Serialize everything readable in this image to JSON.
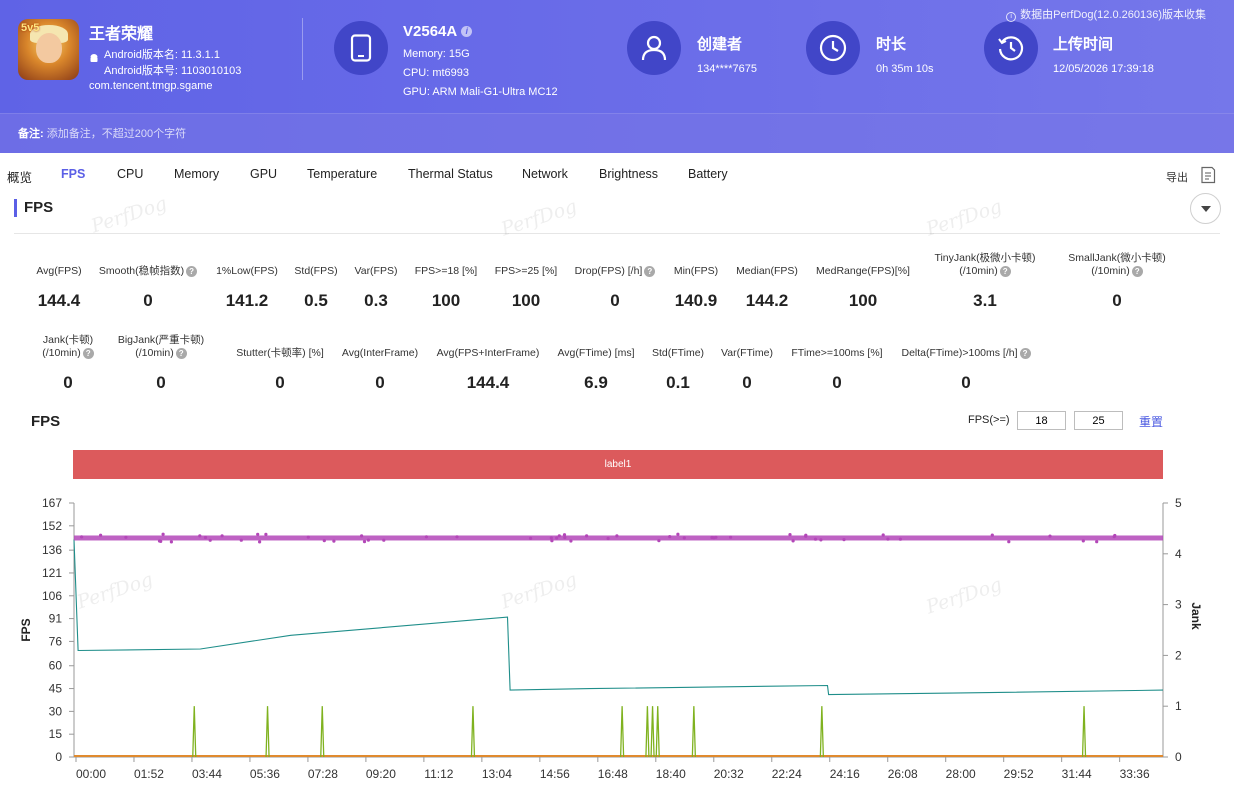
{
  "app": {
    "name": "王者荣耀",
    "version_name": "Android版本名: 11.3.1.1",
    "version_code": "Android版本号: 1103010103",
    "package": "com.tencent.tmgp.sgame"
  },
  "device": {
    "name": "V2564A",
    "memory": "Memory: 15G",
    "cpu": "CPU: mt6993",
    "gpu": "GPU: ARM Mali-G1-Ultra MC12"
  },
  "creator": {
    "title": "创建者",
    "value": "134****7675"
  },
  "duration": {
    "title": "时长",
    "value": "0h 35m 10s"
  },
  "upload": {
    "title": "上传时间",
    "value": "12/05/2026 17:39:18"
  },
  "source_note": "数据由PerfDog(12.0.260136)版本收集",
  "note": {
    "label": "备注:",
    "placeholder": "添加备注，不超过200个字符"
  },
  "tabs": [
    "概览",
    "FPS",
    "CPU",
    "Memory",
    "GPU",
    "Temperature",
    "Thermal Status",
    "Network",
    "Brightness",
    "Battery"
  ],
  "active_tab": "FPS",
  "export_label": "导出",
  "section_title": "FPS",
  "watermark": "PerfDog",
  "metrics_row1": [
    {
      "label": "Avg(FPS)",
      "value": "144.4"
    },
    {
      "label": "Smooth(稳帧指数)",
      "value": "0"
    },
    {
      "label": "1%Low(FPS)",
      "value": "141.2"
    },
    {
      "label": "Std(FPS)",
      "value": "0.5"
    },
    {
      "label": "Var(FPS)",
      "value": "0.3"
    },
    {
      "label": "FPS>=18 [%]",
      "value": "100"
    },
    {
      "label": "FPS>=25 [%]",
      "value": "100"
    },
    {
      "label": "Drop(FPS) [/h]",
      "value": "0"
    },
    {
      "label": "Min(FPS)",
      "value": "140.9"
    },
    {
      "label": "Median(FPS)",
      "value": "144.2"
    },
    {
      "label": "MedRange(FPS)[%]",
      "value": "100"
    },
    {
      "label": "TinyJank(极微小卡顿)",
      "label2": "(/10min)",
      "value": "3.1"
    },
    {
      "label": "SmallJank(微小卡顿)",
      "label2": "(/10min)",
      "value": "0"
    }
  ],
  "metrics_row2": [
    {
      "label": "Jank(卡顿)",
      "label2": "(/10min)",
      "value": "0"
    },
    {
      "label": "BigJank(严重卡顿)",
      "label2": "(/10min)",
      "value": "0"
    },
    {
      "label": "Stutter(卡顿率) [%]",
      "value": "0"
    },
    {
      "label": "Avg(InterFrame)",
      "value": "0"
    },
    {
      "label": "Avg(FPS+InterFrame)",
      "value": "144.4"
    },
    {
      "label": "Avg(FTime) [ms]",
      "value": "6.9"
    },
    {
      "label": "Std(FTime)",
      "value": "0.1"
    },
    {
      "label": "Var(FTime)",
      "value": "0"
    },
    {
      "label": "FTime>=100ms [%]",
      "value": "0"
    },
    {
      "label": "Delta(FTime)>100ms [/h]",
      "value": "0"
    }
  ],
  "chart": {
    "title": "FPS",
    "threshold_label": "FPS(>=)",
    "threshold1": "18",
    "threshold2": "25",
    "reset_label": "重置",
    "label_bar": "label1"
  },
  "chart_data": {
    "type": "line",
    "ylabel": "FPS",
    "y2label": "Jank",
    "ylim": [
      0,
      167
    ],
    "y2lim": [
      0,
      5
    ],
    "yticks": [
      0,
      15,
      30,
      45,
      60,
      76,
      91,
      106,
      121,
      136,
      152,
      167
    ],
    "y2ticks": [
      0,
      1,
      2,
      3,
      4,
      5
    ],
    "xticks": [
      "00:00",
      "01:52",
      "03:44",
      "05:36",
      "07:28",
      "09:20",
      "11:12",
      "13:04",
      "14:56",
      "16:48",
      "18:40",
      "20:32",
      "22:24",
      "24:16",
      "26:08",
      "28:00",
      "29:52",
      "31:44",
      "33:36"
    ],
    "xlim_seconds": [
      0,
      2110
    ],
    "grid": false,
    "colors": {
      "fps": "#b347b8",
      "line2": "#1f8e8a",
      "jank": "#7fb21f",
      "baseline": "#e08a2e"
    },
    "series": [
      {
        "key": "fps",
        "values_note": "flat near 144",
        "points": [
          [
            0,
            144
          ],
          [
            2110,
            144
          ]
        ]
      },
      {
        "key": "line2",
        "points": [
          [
            0,
            143
          ],
          [
            8,
            70
          ],
          [
            245,
            71
          ],
          [
            420,
            80
          ],
          [
            840,
            92
          ],
          [
            845,
            44
          ],
          [
            1000,
            45
          ],
          [
            1460,
            47
          ],
          [
            1462,
            41
          ],
          [
            1700,
            42
          ],
          [
            2110,
            44
          ]
        ]
      },
      {
        "key": "jank",
        "spikes_seconds": [
          233,
          375,
          481,
          773,
          1062,
          1111,
          1121,
          1131,
          1201,
          1449,
          1957
        ],
        "spike_height": 1
      }
    ]
  }
}
